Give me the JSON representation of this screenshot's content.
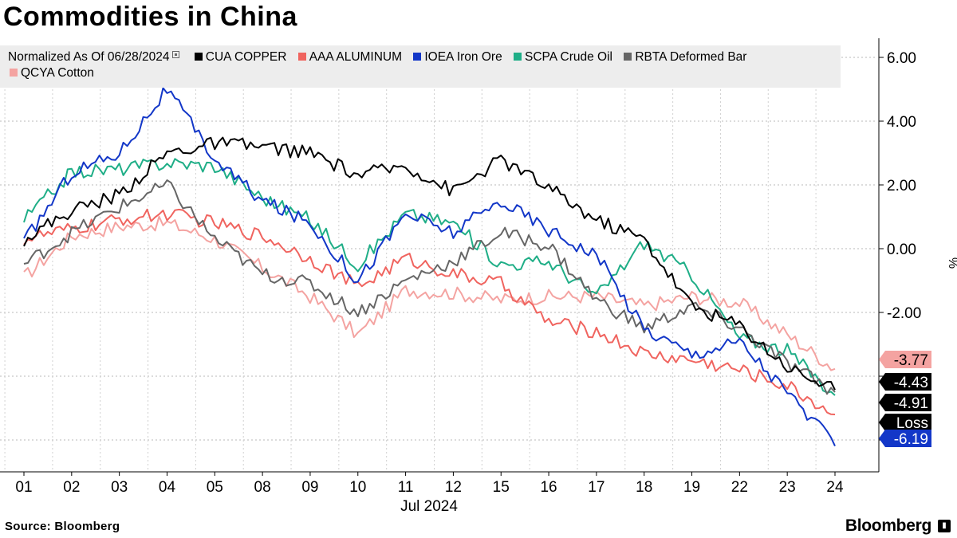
{
  "title": "Commodities in China",
  "source": "Source: Bloomberg",
  "brand": "Bloomberg",
  "legend": {
    "prefix": "Normalized As Of 06/28/2024",
    "items": [
      {
        "label": "CUA COPPER",
        "color": "#000000"
      },
      {
        "label": "AAA ALUMINUM",
        "color": "#f0645f"
      },
      {
        "label": "IOEA Iron Ore",
        "color": "#1337c8"
      },
      {
        "label": "SCPA Crude Oil",
        "color": "#1fae87"
      },
      {
        "label": "RBTA Deformed Bar",
        "color": "#666666"
      },
      {
        "label": "QCYA Cotton",
        "color": "#f4a3a1"
      }
    ]
  },
  "chart_data": {
    "type": "line",
    "title": "Commodities in China",
    "xlabel": "Jul 2024",
    "ylabel": "%",
    "ylim": [
      -7,
      6.6
    ],
    "y_ticks": [
      "6.00",
      "4.00",
      "2.00",
      "0.00",
      "-2.00"
    ],
    "y_tick_values": [
      6,
      4,
      2,
      0,
      -2
    ],
    "x_ticks": [
      "01",
      "02",
      "03",
      "04",
      "05",
      "08",
      "09",
      "10",
      "11",
      "12",
      "15",
      "16",
      "17",
      "18",
      "19",
      "22",
      "23",
      "24"
    ],
    "grid": true,
    "series": [
      {
        "name": "QCYA Cotton",
        "color": "#f4a3a1",
        "values": [
          -0.9,
          0.4,
          0.7,
          0.8,
          0.3,
          -0.6,
          -1.5,
          -2.7,
          -1.3,
          -1.4,
          -1.6,
          -1.5,
          -1.5,
          -1.8,
          -1.5,
          -1.7,
          -2.7,
          -3.77
        ]
      },
      {
        "name": "AAA ALUMINUM",
        "color": "#f0645f",
        "values": [
          0.3,
          0.6,
          0.9,
          1.1,
          0.8,
          0.4,
          -0.3,
          -1.2,
          -0.3,
          -0.8,
          -1.1,
          -2.3,
          -2.6,
          -3.3,
          -3.5,
          -3.8,
          -4.3,
          -5.2
        ]
      },
      {
        "name": "SCPA Crude Oil",
        "color": "#1fae87",
        "values": [
          0.9,
          2.4,
          2.5,
          2.7,
          2.6,
          1.6,
          0.9,
          -0.5,
          1.1,
          0.8,
          -0.5,
          -0.4,
          -1.5,
          0.2,
          -0.8,
          -2.8,
          -3.2,
          -4.6
        ]
      },
      {
        "name": "RBTA Deformed Bar",
        "color": "#666666",
        "values": [
          -0.5,
          0.5,
          1.3,
          2.0,
          0.3,
          -0.8,
          -1.1,
          -2.0,
          -1.0,
          -0.4,
          0.5,
          0.1,
          -1.6,
          -2.5,
          -1.8,
          -2.5,
          -3.6,
          -4.5
        ]
      },
      {
        "name": "IOEA Iron Ore",
        "color": "#1337c8",
        "values": [
          0.2,
          2.4,
          3.0,
          5.0,
          2.8,
          1.5,
          0.8,
          -1.0,
          1.1,
          0.5,
          1.5,
          0.6,
          -0.2,
          -2.5,
          -3.3,
          -2.9,
          -4.5,
          -6.19
        ]
      },
      {
        "name": "CUA COPPER",
        "color": "#000000",
        "values": [
          0.3,
          1.2,
          1.7,
          3.0,
          3.3,
          3.2,
          3.0,
          2.3,
          2.6,
          1.8,
          2.8,
          1.9,
          0.9,
          0.3,
          -1.8,
          -2.4,
          -3.7,
          -4.43
        ]
      }
    ],
    "end_labels": [
      {
        "text": "-3.77",
        "bg": "#f4a3a1",
        "fg": "#000000",
        "value": -3.77
      },
      {
        "text": "-4.43",
        "bg": "#000000",
        "fg": "#ffffff",
        "value": -4.43
      },
      {
        "text": "-4.91",
        "bg": "#000000",
        "fg": "#ffffff",
        "value": -4.91
      },
      {
        "text": "Loss",
        "bg": "#000000",
        "fg": "#ffffff",
        "value": -5.6
      },
      {
        "text": "-6.19",
        "bg": "#1337c8",
        "fg": "#ffffff",
        "value": -6.19
      }
    ]
  }
}
